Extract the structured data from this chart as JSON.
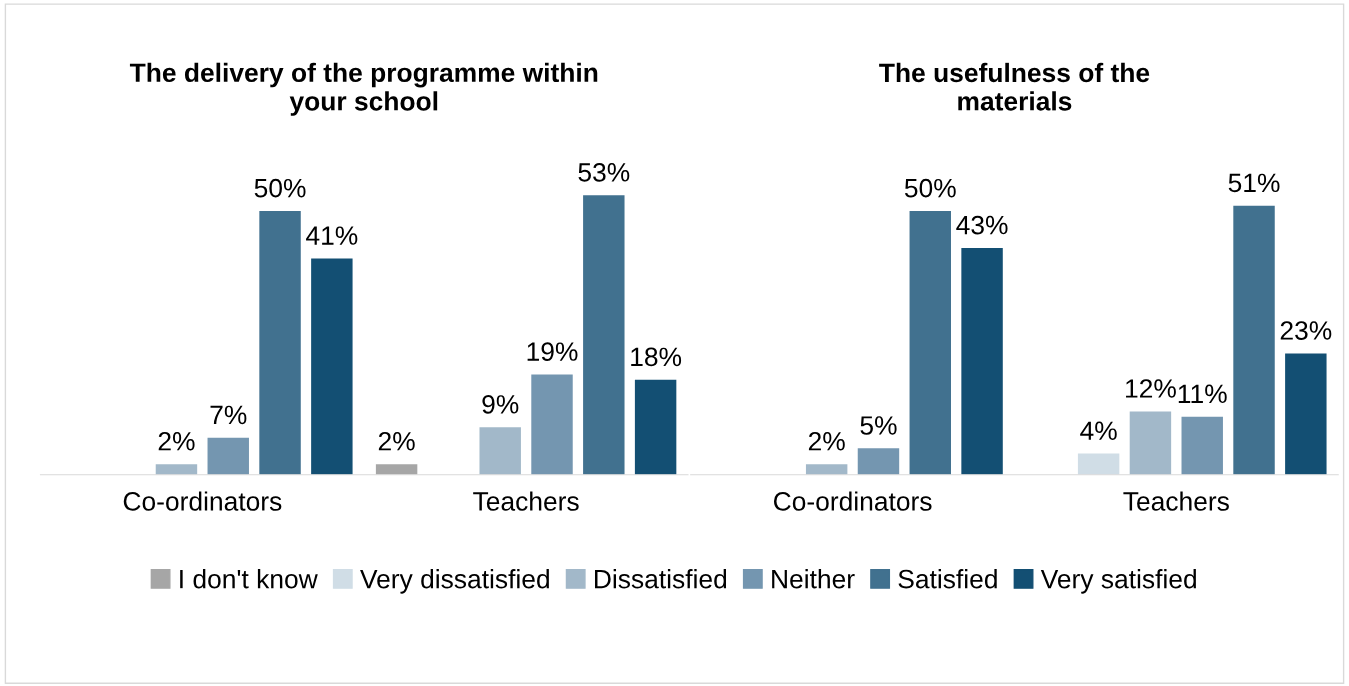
{
  "chart_data": [
    {
      "type": "bar",
      "title": "The delivery of the programme within\nyour school",
      "categories": [
        "Co-ordinators",
        "Teachers"
      ],
      "legend": "bottom",
      "series": [
        {
          "name": "I don't know",
          "color": "#a6a6a6",
          "values": [
            null,
            2
          ],
          "value_labels": [
            null,
            "2%"
          ]
        },
        {
          "name": "Very dissatisfied",
          "color": "#d0dde6",
          "values": [
            null,
            null
          ],
          "value_labels": [
            null,
            null
          ]
        },
        {
          "name": "Dissatisfied",
          "color": "#a2b8c9",
          "values": [
            2,
            9
          ],
          "value_labels": [
            "2%",
            "9%"
          ]
        },
        {
          "name": "Neither",
          "color": "#7496b0",
          "values": [
            7,
            19
          ],
          "value_labels": [
            "7%",
            "19%"
          ]
        },
        {
          "name": "Satisfied",
          "color": "#41718f",
          "values": [
            50,
            53
          ],
          "value_labels": [
            "50%",
            "53%"
          ]
        },
        {
          "name": "Very satisfied",
          "color": "#134f73",
          "values": [
            41,
            18
          ],
          "value_labels": [
            "41%",
            "18%"
          ]
        }
      ]
    },
    {
      "type": "bar",
      "title": "The usefulness of the\nmaterials",
      "categories": [
        "Co-ordinators",
        "Teachers"
      ],
      "series": [
        {
          "color": "#a6a6a6",
          "values": [
            null,
            null
          ],
          "value_labels": [
            null,
            null
          ]
        },
        {
          "color": "#d0dde6",
          "values": [
            null,
            4
          ],
          "value_labels": [
            null,
            "4%"
          ]
        },
        {
          "color": "#a2b8c9",
          "values": [
            2,
            12
          ],
          "value_labels": [
            "2%",
            "12%"
          ]
        },
        {
          "color": "#7496b0",
          "values": [
            5,
            11
          ],
          "value_labels": [
            "5%",
            "11%"
          ]
        },
        {
          "color": "#41718f",
          "values": [
            50,
            51
          ],
          "value_labels": [
            "50%",
            "51%"
          ]
        },
        {
          "color": "#134f73",
          "values": [
            43,
            23
          ],
          "value_labels": [
            "43%",
            "23%"
          ]
        }
      ]
    }
  ]
}
